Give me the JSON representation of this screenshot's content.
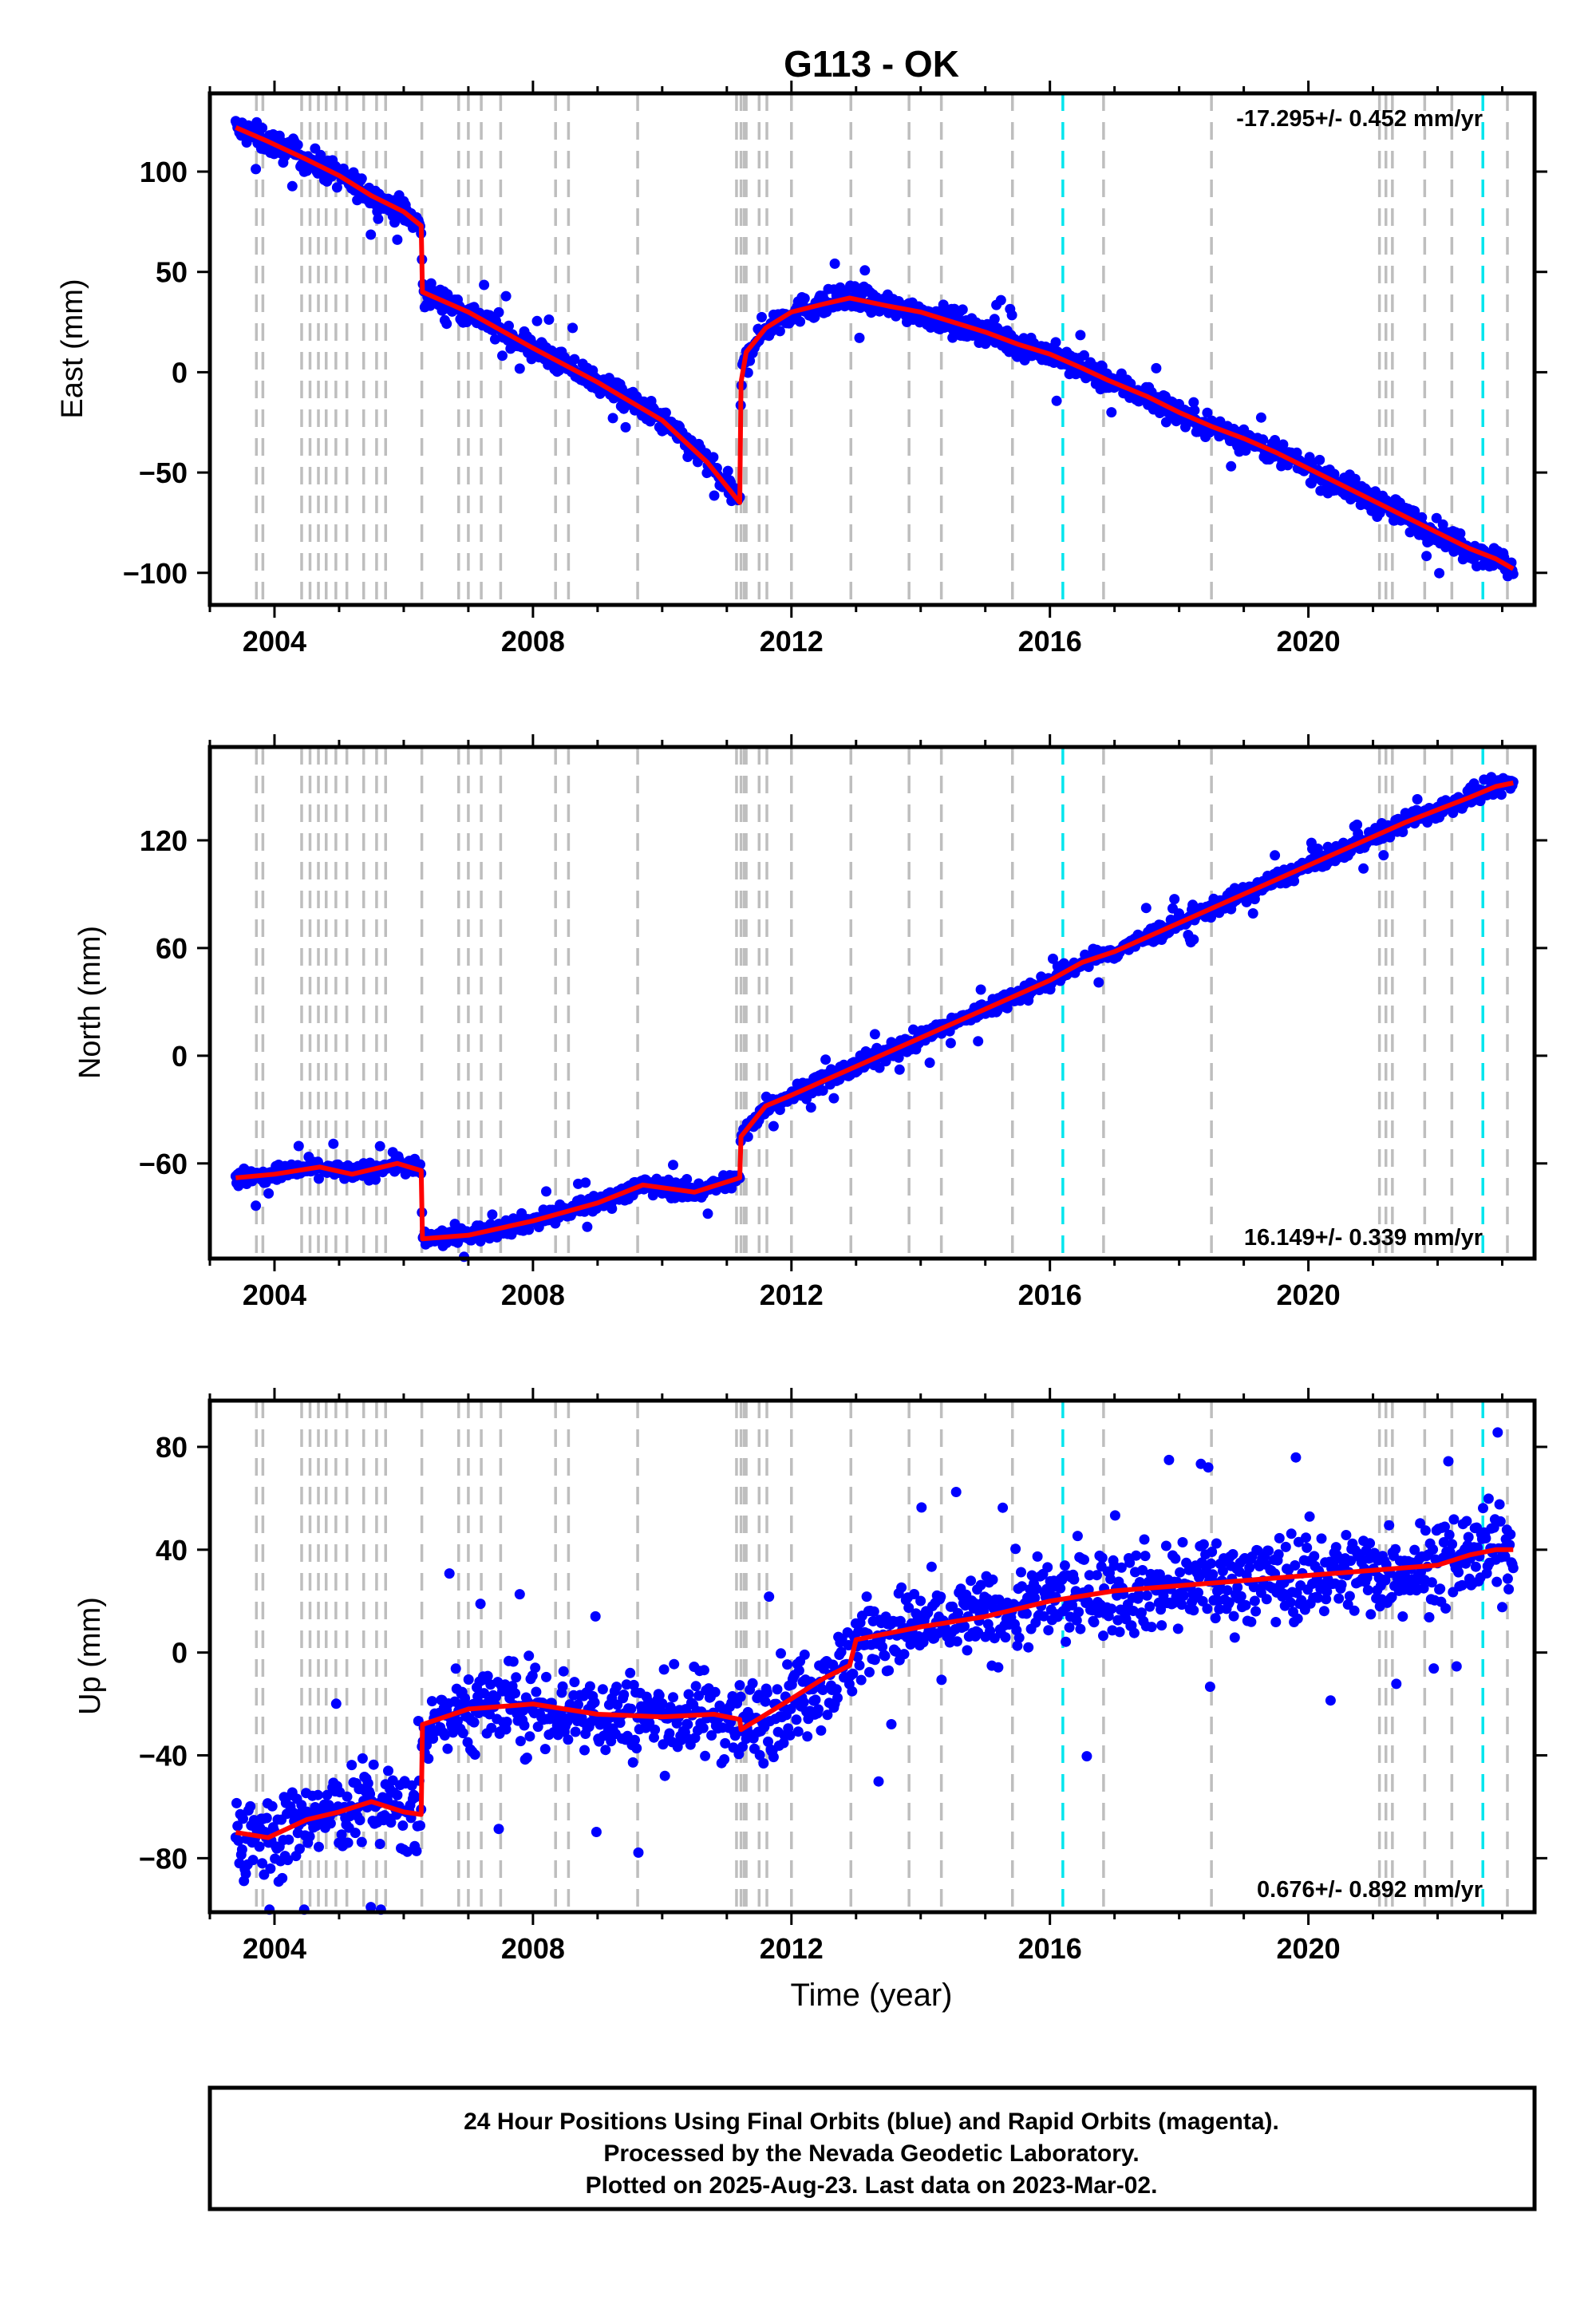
{
  "title": "G113 - OK",
  "colors": {
    "observations": "#0000ff",
    "model": "#ff0000",
    "event_lines": "#bebebe",
    "equipment_lines": "#00e5ee",
    "frame": "#000000"
  },
  "footer": {
    "line1": "24 Hour Positions Using Final Orbits (blue) and Rapid Orbits (magenta).",
    "line2": "Processed by the Nevada Geodetic Laboratory.",
    "line3": "Plotted on 2025-Aug-23. Last data on 2023-Mar-02."
  },
  "x_axis": {
    "label": "Time (year)",
    "ticks": [
      "2004",
      "2008",
      "2012",
      "2016",
      "2020"
    ]
  },
  "chart_data": [
    {
      "type": "scatter",
      "component": "east",
      "ylabel": "East (mm)",
      "rate_label": "-17.295+/- 0.452 mm/yr",
      "xlim": [
        2003.0,
        2023.5
      ],
      "ylim": [
        -116,
        139
      ],
      "yticks": [
        100,
        50,
        0,
        -50,
        -100
      ],
      "yticklabels": [
        "100",
        "50",
        "0",
        "−50",
        "−100"
      ],
      "grid": false,
      "series": [
        {
          "name": "observations",
          "x": [
            2003.4,
            2003.9,
            2004.5,
            2005.0,
            2005.5,
            2006.0,
            2006.27,
            2006.29,
            2007.0,
            2008.0,
            2009.0,
            2010.0,
            2010.7,
            2011.2,
            2011.22,
            2011.3,
            2011.6,
            2012.0,
            2012.5,
            2012.9,
            2013.5,
            2014.0,
            2014.5,
            2015.0,
            2015.5,
            2016.0,
            2016.5,
            2016.9,
            2017.5,
            2018.0,
            2018.5,
            2019.0,
            2019.5,
            2020.0,
            2020.5,
            2021.0,
            2021.5,
            2022.0,
            2022.5,
            2022.9,
            2023.17
          ],
          "y": [
            122,
            115,
            106,
            98,
            88,
            80,
            73,
            40,
            30,
            12,
            -5,
            -24,
            -45,
            -65,
            -5,
            10,
            22,
            30,
            34,
            37,
            33,
            30,
            25,
            20,
            14,
            9,
            2,
            -4,
            -12,
            -20,
            -27,
            -33,
            -40,
            -48,
            -56,
            -64,
            -72,
            -80,
            -88,
            -93,
            -98
          ],
          "spread": 4.5
        },
        {
          "name": "model",
          "x": [
            2003.4,
            2003.9,
            2004.5,
            2005.0,
            2005.5,
            2006.0,
            2006.27,
            2006.29,
            2007.0,
            2008.0,
            2009.0,
            2010.0,
            2010.7,
            2011.2,
            2011.22,
            2011.3,
            2011.6,
            2012.0,
            2012.5,
            2012.9,
            2013.5,
            2014.0,
            2014.5,
            2015.0,
            2015.5,
            2016.0,
            2016.5,
            2016.9,
            2017.5,
            2018.0,
            2018.5,
            2019.0,
            2019.5,
            2020.0,
            2020.5,
            2021.0,
            2021.5,
            2022.0,
            2022.5,
            2022.9,
            2023.17
          ],
          "y": [
            122,
            115,
            106,
            98,
            88,
            80,
            73,
            40,
            30,
            12,
            -5,
            -24,
            -45,
            -65,
            -5,
            10,
            22,
            30,
            34,
            37,
            33,
            30,
            25,
            20,
            14,
            9,
            2,
            -4,
            -12,
            -20,
            -27,
            -33,
            -40,
            -48,
            -56,
            -64,
            -72,
            -80,
            -88,
            -93,
            -98
          ]
        }
      ]
    },
    {
      "type": "scatter",
      "component": "north",
      "ylabel": "North (mm)",
      "rate_label": "16.149+/- 0.339 mm/yr",
      "xlim": [
        2003.0,
        2023.5
      ],
      "ylim": [
        -113,
        172
      ],
      "yticks": [
        120,
        60,
        0,
        -60
      ],
      "yticklabels": [
        "120",
        "60",
        "0",
        "−60"
      ],
      "grid": false,
      "series": [
        {
          "name": "observations",
          "x": [
            2003.4,
            2004.0,
            2004.7,
            2005.2,
            2005.9,
            2006.27,
            2006.29,
            2007.0,
            2008.0,
            2009.0,
            2009.7,
            2010.5,
            2011.2,
            2011.22,
            2011.6,
            2012.0,
            2012.5,
            2013.0,
            2013.5,
            2014.0,
            2014.5,
            2015.0,
            2015.5,
            2016.0,
            2016.5,
            2017.0,
            2017.5,
            2018.0,
            2018.5,
            2019.0,
            2019.5,
            2020.0,
            2020.5,
            2021.0,
            2021.5,
            2022.0,
            2022.5,
            2022.9,
            2023.17
          ],
          "y": [
            -68,
            -66,
            -62,
            -66,
            -60,
            -64,
            -102,
            -100,
            -92,
            -82,
            -72,
            -76,
            -68,
            -45,
            -28,
            -22,
            -14,
            -6,
            2,
            10,
            18,
            26,
            34,
            42,
            52,
            58,
            66,
            74,
            82,
            90,
            98,
            106,
            114,
            122,
            130,
            137,
            144,
            150,
            152
          ],
          "spread": 3.5
        },
        {
          "name": "model",
          "x": [
            2003.4,
            2004.0,
            2004.7,
            2005.2,
            2005.9,
            2006.27,
            2006.29,
            2007.0,
            2008.0,
            2009.0,
            2009.7,
            2010.5,
            2011.2,
            2011.22,
            2011.6,
            2012.0,
            2012.5,
            2013.0,
            2013.5,
            2014.0,
            2014.5,
            2015.0,
            2015.5,
            2016.0,
            2016.5,
            2017.0,
            2017.5,
            2018.0,
            2018.5,
            2019.0,
            2019.5,
            2020.0,
            2020.5,
            2021.0,
            2021.5,
            2022.0,
            2022.5,
            2022.9,
            2023.17
          ],
          "y": [
            -68,
            -66,
            -62,
            -66,
            -60,
            -64,
            -102,
            -100,
            -92,
            -82,
            -72,
            -76,
            -68,
            -45,
            -28,
            -22,
            -14,
            -6,
            2,
            10,
            18,
            26,
            34,
            42,
            52,
            58,
            66,
            74,
            82,
            90,
            98,
            106,
            114,
            122,
            130,
            137,
            144,
            150,
            152
          ]
        }
      ]
    },
    {
      "type": "scatter",
      "component": "up",
      "ylabel": "Up (mm)",
      "rate_label": "0.676+/- 0.892 mm/yr",
      "xlim": [
        2003.0,
        2023.5
      ],
      "ylim": [
        -101,
        98
      ],
      "yticks": [
        80,
        40,
        0,
        -40,
        -80
      ],
      "yticklabels": [
        "80",
        "40",
        "0",
        "−40",
        "−80"
      ],
      "grid": false,
      "series": [
        {
          "name": "observations",
          "x": [
            2003.4,
            2003.9,
            2004.5,
            2005.0,
            2005.5,
            2006.0,
            2006.27,
            2006.29,
            2007.0,
            2008.0,
            2009.0,
            2010.0,
            2010.8,
            2011.2,
            2011.22,
            2012.0,
            2012.5,
            2012.9,
            2013.0,
            2014.0,
            2015.0,
            2016.0,
            2017.0,
            2018.0,
            2019.0,
            2020.0,
            2021.0,
            2022.0,
            2022.5,
            2022.9,
            2023.17
          ],
          "y": [
            -70,
            -72,
            -65,
            -62,
            -58,
            -62,
            -63,
            -28,
            -22,
            -20,
            -24,
            -25,
            -24,
            -26,
            -30,
            -18,
            -10,
            -5,
            5,
            10,
            14,
            20,
            24,
            26,
            28,
            30,
            32,
            34,
            38,
            40,
            40
          ],
          "spread": 12
        },
        {
          "name": "model",
          "x": [
            2003.4,
            2003.9,
            2004.5,
            2005.0,
            2005.5,
            2006.0,
            2006.27,
            2006.29,
            2007.0,
            2008.0,
            2009.0,
            2010.0,
            2010.8,
            2011.2,
            2011.22,
            2012.0,
            2012.5,
            2012.9,
            2013.0,
            2014.0,
            2015.0,
            2016.0,
            2017.0,
            2018.0,
            2019.0,
            2020.0,
            2021.0,
            2022.0,
            2022.5,
            2022.9,
            2023.17
          ],
          "y": [
            -70,
            -72,
            -65,
            -62,
            -58,
            -62,
            -63,
            -28,
            -22,
            -20,
            -24,
            -25,
            -24,
            -26,
            -30,
            -18,
            -10,
            -5,
            5,
            10,
            14,
            20,
            24,
            26,
            28,
            30,
            32,
            34,
            38,
            40,
            40
          ]
        }
      ]
    }
  ],
  "event_lines_years": [
    2003.72,
    2003.82,
    2004.42,
    2004.55,
    2004.68,
    2004.8,
    2004.95,
    2005.12,
    2005.38,
    2005.58,
    2005.72,
    2006.28,
    2006.85,
    2007.0,
    2007.2,
    2007.5,
    2008.35,
    2008.55,
    2009.62,
    2011.15,
    2011.22,
    2011.27,
    2011.3,
    2011.5,
    2011.62,
    2012.0,
    2012.92,
    2013.82,
    2014.32,
    2015.42,
    2016.83,
    2018.5,
    2021.1,
    2021.2,
    2021.3,
    2021.8,
    2022.22,
    2023.08
  ],
  "equipment_lines_years": [
    2016.2,
    2022.7
  ]
}
